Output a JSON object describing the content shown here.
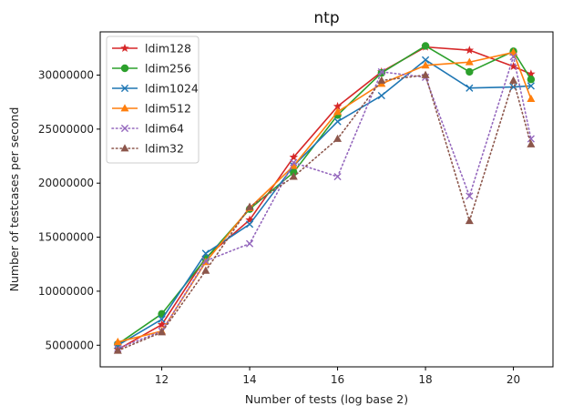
{
  "chart_data": {
    "type": "line",
    "title": "ntp",
    "xlabel": "Number of tests (log base 2)",
    "ylabel": "Number of testcases per second",
    "xlim": [
      10.6,
      20.9
    ],
    "ylim": [
      3000000,
      34000000
    ],
    "xticks": [
      12,
      14,
      16,
      18,
      20
    ],
    "yticks": [
      5000000,
      10000000,
      15000000,
      20000000,
      25000000,
      30000000
    ],
    "grid": false,
    "legend_position": "upper-left",
    "series": [
      {
        "name": "ldim128",
        "color": "#d62728",
        "marker": "star",
        "linestyle": "solid",
        "x": [
          11,
          12,
          13,
          14,
          15,
          16,
          17,
          18,
          19,
          20,
          20.4
        ],
        "y": [
          4600000,
          6900000,
          13100000,
          16600000,
          22400000,
          27100000,
          30300000,
          32600000,
          32300000,
          30800000,
          30100000
        ]
      },
      {
        "name": "ldim256",
        "color": "#2ca02c",
        "marker": "circle",
        "linestyle": "solid",
        "x": [
          11,
          12,
          13,
          14,
          15,
          16,
          17,
          18,
          19,
          20,
          20.4
        ],
        "y": [
          5100000,
          7900000,
          13000000,
          17600000,
          21000000,
          26300000,
          30200000,
          32700000,
          30300000,
          32200000,
          29600000
        ]
      },
      {
        "name": "ldim1024",
        "color": "#1f77b4",
        "marker": "x",
        "linestyle": "solid",
        "x": [
          11,
          12,
          13,
          14,
          15,
          16,
          17,
          18,
          19,
          20,
          20.4
        ],
        "y": [
          5000000,
          7400000,
          13500000,
          16200000,
          21600000,
          25700000,
          28100000,
          31400000,
          28800000,
          28900000,
          29000000
        ]
      },
      {
        "name": "ldim512",
        "color": "#ff7f0e",
        "marker": "triangle",
        "linestyle": "solid",
        "x": [
          11,
          12,
          13,
          14,
          15,
          16,
          17,
          18,
          19,
          20,
          20.4
        ],
        "y": [
          5300000,
          6300000,
          12700000,
          17700000,
          21600000,
          26600000,
          29200000,
          30900000,
          31200000,
          32100000,
          27800000
        ]
      },
      {
        "name": "ldim64",
        "color": "#9467bd",
        "marker": "x",
        "linestyle": "dotted",
        "x": [
          11,
          12,
          13,
          14,
          15,
          16,
          17,
          18,
          19,
          20,
          20.4
        ],
        "y": [
          4700000,
          6300000,
          12800000,
          14400000,
          21900000,
          20600000,
          30300000,
          29800000,
          18800000,
          31700000,
          24100000
        ]
      },
      {
        "name": "ldim32",
        "color": "#8c564b",
        "marker": "triangle",
        "linestyle": "dotted",
        "x": [
          11,
          12,
          13,
          14,
          15,
          16,
          17,
          18,
          19,
          20,
          20.4
        ],
        "y": [
          4500000,
          6200000,
          11900000,
          17800000,
          20600000,
          24100000,
          29500000,
          30000000,
          16500000,
          29500000,
          23600000
        ]
      }
    ]
  }
}
